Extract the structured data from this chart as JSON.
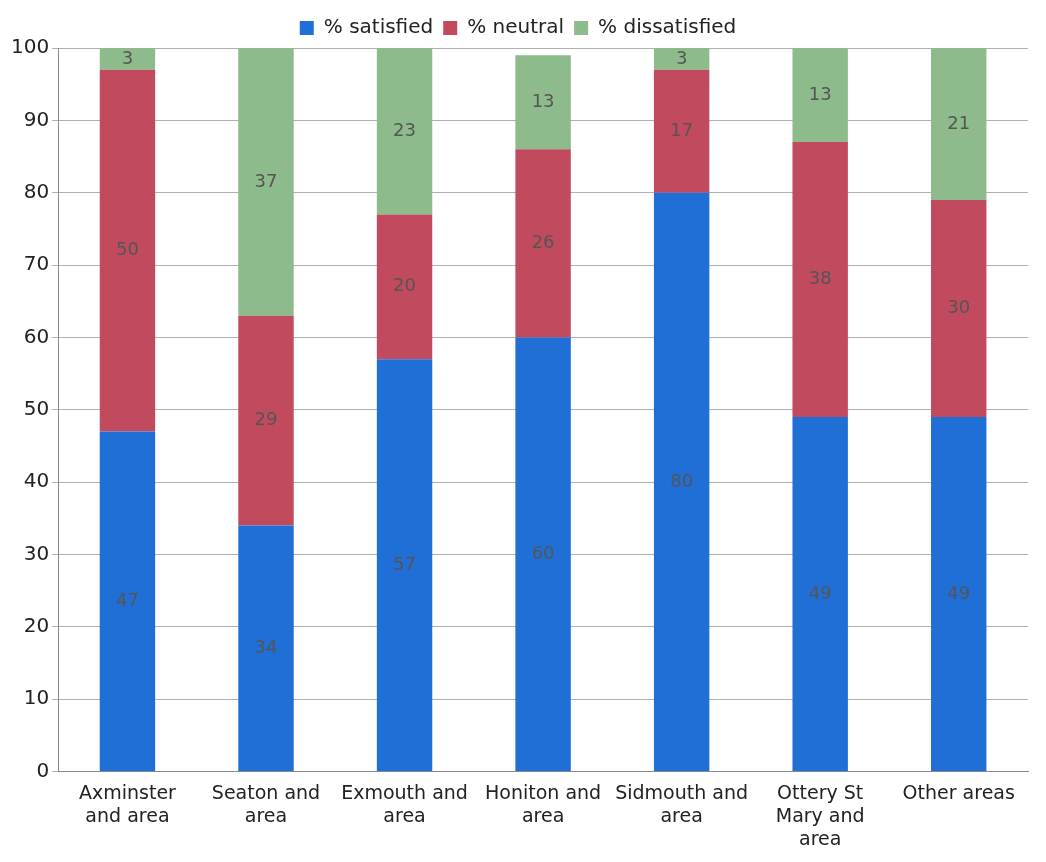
{
  "chart_data": {
    "type": "bar",
    "stacked": true,
    "categories": [
      "Axminster and area",
      "Seaton and area",
      "Exmouth and area",
      "Honiton and area",
      "Sidmouth and area",
      "Ottery St Mary and area",
      "Other areas"
    ],
    "series": [
      {
        "name": "% satisfied",
        "color": "#1f6fd6",
        "values": [
          47,
          34,
          57,
          60,
          80,
          49,
          49
        ]
      },
      {
        "name": "% neutral",
        "color": "#c24a5e",
        "values": [
          50,
          29,
          20,
          26,
          17,
          38,
          30
        ]
      },
      {
        "name": "% dissatisfied",
        "color": "#8dbb8c",
        "values": [
          3,
          37,
          23,
          13,
          3,
          13,
          21
        ]
      }
    ],
    "ylim": [
      0,
      100
    ],
    "yticks": [
      0,
      10,
      20,
      30,
      40,
      50,
      60,
      70,
      80,
      90,
      100
    ],
    "grid": "y",
    "legend": "top",
    "data_labels": true
  }
}
